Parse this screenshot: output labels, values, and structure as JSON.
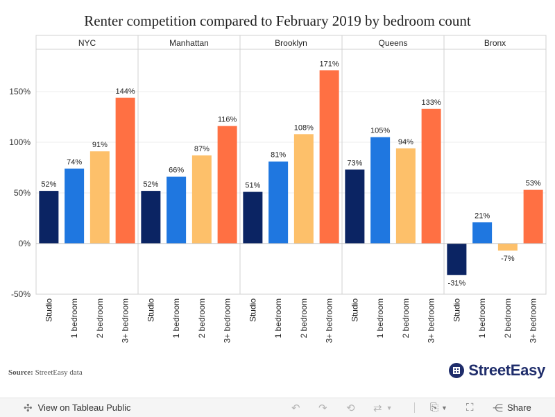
{
  "chart_data": {
    "type": "bar",
    "title": "Renter competition compared to February 2019 by bedroom count",
    "panels": [
      "NYC",
      "Manhattan",
      "Brooklyn",
      "Queens",
      "Bronx"
    ],
    "categories": [
      "Studio",
      "1 bedroom",
      "2 bedroom",
      "3+ bedroom"
    ],
    "series": [
      {
        "panel": "NYC",
        "values": [
          52,
          74,
          91,
          144
        ],
        "labels": [
          "52%",
          "74%",
          "91%",
          "144%"
        ]
      },
      {
        "panel": "Manhattan",
        "values": [
          52,
          66,
          87,
          116
        ],
        "labels": [
          "52%",
          "66%",
          "87%",
          "116%"
        ]
      },
      {
        "panel": "Brooklyn",
        "values": [
          51,
          81,
          108,
          171
        ],
        "labels": [
          "51%",
          "81%",
          "108%",
          "171%"
        ]
      },
      {
        "panel": "Queens",
        "values": [
          73,
          105,
          94,
          133
        ],
        "labels": [
          "73%",
          "105%",
          "94%",
          "133%"
        ]
      },
      {
        "panel": "Bronx",
        "values": [
          -31,
          21,
          -7,
          53
        ],
        "labels": [
          "-31%",
          "21%",
          "-7%",
          "53%"
        ]
      }
    ],
    "category_colors": [
      "#0b2463",
      "#1f77e0",
      "#fdc06a",
      "#ff7043"
    ],
    "y_ticks": [
      -50,
      0,
      50,
      100,
      150
    ],
    "y_tick_labels": [
      "-50%",
      "0%",
      "50%",
      "100%",
      "150%"
    ],
    "ylim": [
      -50,
      185
    ],
    "grid": true,
    "xlabel": "",
    "ylabel": ""
  },
  "source": {
    "label": "Source:",
    "text": "StreetEasy data"
  },
  "logo": {
    "text": "StreetEasy",
    "icon": "building-icon"
  },
  "footer": {
    "view_label": "View on Tableau Public",
    "share_label": "Share"
  }
}
